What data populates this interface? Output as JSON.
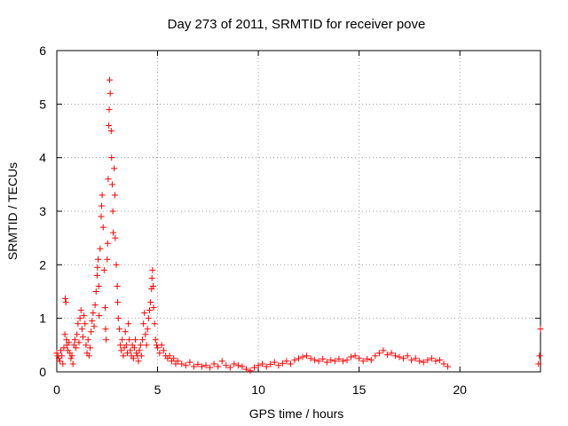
{
  "chart_data": {
    "type": "scatter",
    "title": "Day 273 of 2011, SRMTID for receiver pove",
    "xlabel": "GPS time / hours",
    "ylabel": "SRMTID / TECUs",
    "xlim": [
      0,
      24
    ],
    "ylim": [
      0,
      6
    ],
    "xticks": [
      0,
      5,
      10,
      15,
      20
    ],
    "yticks": [
      0,
      1,
      2,
      3,
      4,
      5,
      6
    ],
    "grid": true,
    "marker": "+",
    "color": "#ff0000",
    "series": [
      {
        "name": "SRMTID",
        "points": [
          [
            0.0,
            0.35
          ],
          [
            0.05,
            0.3
          ],
          [
            0.1,
            0.25
          ],
          [
            0.15,
            0.2
          ],
          [
            0.2,
            0.4
          ],
          [
            0.25,
            0.3
          ],
          [
            0.3,
            0.15
          ],
          [
            0.35,
            0.45
          ],
          [
            0.4,
            0.7
          ],
          [
            0.42,
            1.37
          ],
          [
            0.45,
            1.3
          ],
          [
            0.48,
            0.6
          ],
          [
            0.5,
            0.5
          ],
          [
            0.55,
            0.4
          ],
          [
            0.6,
            0.55
          ],
          [
            0.65,
            0.35
          ],
          [
            0.7,
            0.25
          ],
          [
            0.75,
            0.3
          ],
          [
            0.8,
            0.15
          ],
          [
            0.85,
            0.5
          ],
          [
            0.9,
            0.6
          ],
          [
            0.95,
            0.45
          ],
          [
            1.0,
            0.7
          ],
          [
            1.05,
            0.9
          ],
          [
            1.1,
            0.55
          ],
          [
            1.15,
            1.0
          ],
          [
            1.2,
            1.15
          ],
          [
            1.25,
            0.8
          ],
          [
            1.3,
            0.65
          ],
          [
            1.35,
            1.05
          ],
          [
            1.4,
            0.9
          ],
          [
            1.45,
            0.5
          ],
          [
            1.5,
            0.35
          ],
          [
            1.55,
            0.6
          ],
          [
            1.6,
            0.3
          ],
          [
            1.65,
            0.45
          ],
          [
            1.7,
            0.75
          ],
          [
            1.75,
            0.95
          ],
          [
            1.8,
            1.1
          ],
          [
            1.85,
            0.85
          ],
          [
            1.9,
            1.25
          ],
          [
            1.95,
            1.5
          ],
          [
            2.0,
            1.8
          ],
          [
            2.02,
            1.95
          ],
          [
            2.05,
            2.1
          ],
          [
            2.08,
            1.6
          ],
          [
            2.1,
            1.05
          ],
          [
            2.15,
            2.3
          ],
          [
            2.2,
            2.9
          ],
          [
            2.22,
            3.1
          ],
          [
            2.25,
            3.3
          ],
          [
            2.3,
            2.7
          ],
          [
            2.35,
            1.9
          ],
          [
            2.4,
            1.2
          ],
          [
            2.42,
            0.8
          ],
          [
            2.45,
            0.6
          ],
          [
            2.5,
            2.1
          ],
          [
            2.52,
            2.4
          ],
          [
            2.55,
            3.6
          ],
          [
            2.58,
            4.6
          ],
          [
            2.6,
            4.9
          ],
          [
            2.62,
            5.45
          ],
          [
            2.65,
            5.2
          ],
          [
            2.7,
            4.5
          ],
          [
            2.72,
            4.0
          ],
          [
            2.75,
            3.5
          ],
          [
            2.78,
            3.0
          ],
          [
            2.8,
            2.6
          ],
          [
            2.85,
            3.8
          ],
          [
            2.88,
            3.3
          ],
          [
            2.9,
            2.5
          ],
          [
            2.95,
            2.0
          ],
          [
            3.0,
            1.6
          ],
          [
            3.02,
            1.3
          ],
          [
            3.05,
            1.0
          ],
          [
            3.1,
            0.8
          ],
          [
            3.15,
            0.5
          ],
          [
            3.2,
            0.4
          ],
          [
            3.25,
            0.6
          ],
          [
            3.3,
            0.3
          ],
          [
            3.35,
            0.45
          ],
          [
            3.4,
            0.75
          ],
          [
            3.45,
            0.5
          ],
          [
            3.5,
            0.35
          ],
          [
            3.55,
            0.9
          ],
          [
            3.6,
            0.6
          ],
          [
            3.65,
            0.4
          ],
          [
            3.7,
            0.3
          ],
          [
            3.75,
            0.5
          ],
          [
            3.8,
            0.25
          ],
          [
            3.85,
            0.45
          ],
          [
            3.9,
            0.6
          ],
          [
            3.95,
            0.35
          ],
          [
            4.0,
            0.3
          ],
          [
            4.05,
            0.2
          ],
          [
            4.1,
            0.4
          ],
          [
            4.15,
            0.5
          ],
          [
            4.2,
            0.3
          ],
          [
            4.25,
            0.6
          ],
          [
            4.3,
            0.9
          ],
          [
            4.35,
            1.1
          ],
          [
            4.4,
            0.7
          ],
          [
            4.45,
            0.5
          ],
          [
            4.5,
            0.8
          ],
          [
            4.55,
            1.0
          ],
          [
            4.6,
            1.15
          ],
          [
            4.65,
            1.3
          ],
          [
            4.7,
            1.55
          ],
          [
            4.72,
            1.75
          ],
          [
            4.75,
            1.9
          ],
          [
            4.78,
            1.6
          ],
          [
            4.8,
            1.2
          ],
          [
            4.85,
            0.9
          ],
          [
            4.9,
            0.6
          ],
          [
            4.95,
            0.5
          ],
          [
            5.0,
            0.45
          ],
          [
            5.1,
            0.35
          ],
          [
            5.2,
            0.5
          ],
          [
            5.3,
            0.4
          ],
          [
            5.4,
            0.3
          ],
          [
            5.5,
            0.25
          ],
          [
            5.6,
            0.3
          ],
          [
            5.7,
            0.2
          ],
          [
            5.8,
            0.25
          ],
          [
            5.9,
            0.15
          ],
          [
            6.0,
            0.2
          ],
          [
            6.2,
            0.15
          ],
          [
            6.4,
            0.12
          ],
          [
            6.6,
            0.18
          ],
          [
            6.8,
            0.1
          ],
          [
            7.0,
            0.14
          ],
          [
            7.2,
            0.1
          ],
          [
            7.4,
            0.12
          ],
          [
            7.6,
            0.08
          ],
          [
            7.8,
            0.15
          ],
          [
            8.0,
            0.1
          ],
          [
            8.2,
            0.2
          ],
          [
            8.4,
            0.12
          ],
          [
            8.6,
            0.08
          ],
          [
            8.8,
            0.15
          ],
          [
            9.0,
            0.12
          ],
          [
            9.2,
            0.1
          ],
          [
            9.4,
            0.05
          ],
          [
            9.6,
            0.02
          ],
          [
            9.8,
            0.08
          ],
          [
            10.0,
            0.12
          ],
          [
            10.2,
            0.15
          ],
          [
            10.4,
            0.1
          ],
          [
            10.6,
            0.14
          ],
          [
            10.8,
            0.18
          ],
          [
            11.0,
            0.12
          ],
          [
            11.2,
            0.16
          ],
          [
            11.4,
            0.2
          ],
          [
            11.6,
            0.15
          ],
          [
            11.8,
            0.22
          ],
          [
            12.0,
            0.25
          ],
          [
            12.2,
            0.28
          ],
          [
            12.4,
            0.3
          ],
          [
            12.6,
            0.25
          ],
          [
            12.8,
            0.22
          ],
          [
            13.0,
            0.2
          ],
          [
            13.2,
            0.24
          ],
          [
            13.4,
            0.18
          ],
          [
            13.6,
            0.22
          ],
          [
            13.8,
            0.2
          ],
          [
            14.0,
            0.24
          ],
          [
            14.2,
            0.2
          ],
          [
            14.4,
            0.22
          ],
          [
            14.6,
            0.28
          ],
          [
            14.8,
            0.3
          ],
          [
            15.0,
            0.25
          ],
          [
            15.2,
            0.2
          ],
          [
            15.4,
            0.24
          ],
          [
            15.6,
            0.22
          ],
          [
            15.8,
            0.3
          ],
          [
            16.0,
            0.35
          ],
          [
            16.2,
            0.4
          ],
          [
            16.4,
            0.32
          ],
          [
            16.6,
            0.35
          ],
          [
            16.8,
            0.3
          ],
          [
            17.0,
            0.28
          ],
          [
            17.2,
            0.25
          ],
          [
            17.4,
            0.3
          ],
          [
            17.6,
            0.22
          ],
          [
            17.8,
            0.25
          ],
          [
            18.0,
            0.2
          ],
          [
            18.2,
            0.18
          ],
          [
            18.4,
            0.22
          ],
          [
            18.6,
            0.25
          ],
          [
            18.8,
            0.2
          ],
          [
            19.0,
            0.22
          ],
          [
            19.2,
            0.15
          ],
          [
            19.4,
            0.1
          ],
          [
            23.9,
            0.15
          ],
          [
            23.95,
            0.3
          ],
          [
            24.0,
            0.8
          ]
        ]
      }
    ]
  }
}
